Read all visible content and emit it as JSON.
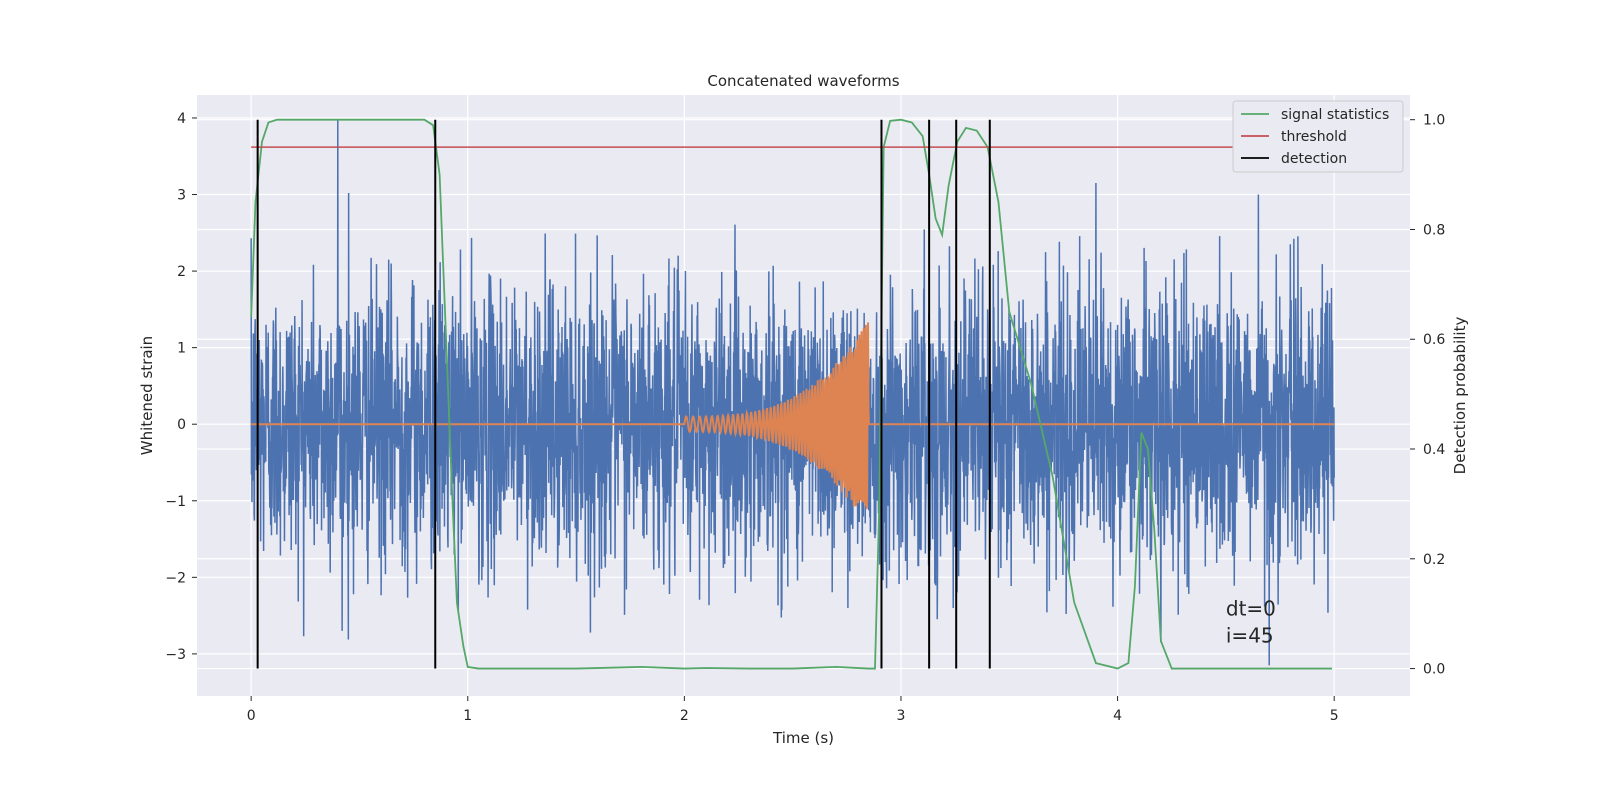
{
  "chart_data": {
    "type": "line",
    "title": "Concatenated waveforms",
    "xlabel": "Time (s)",
    "ylabel": "Whitened strain",
    "ylabel_right": "Detection probability",
    "xlim": [
      -0.25,
      5.35
    ],
    "ylim": [
      -3.55,
      4.3
    ],
    "ylim_right": [
      -0.05,
      1.045
    ],
    "x_ticks": [
      0,
      1,
      2,
      3,
      4,
      5
    ],
    "y_ticks": [
      -3,
      -2,
      -1,
      0,
      1,
      2,
      3,
      4
    ],
    "y_right_ticks": [
      0.0,
      0.2,
      0.4,
      0.6,
      0.8,
      1.0
    ],
    "x_tick_labels": [
      "0",
      "1",
      "2",
      "3",
      "4",
      "5"
    ],
    "y_tick_labels": [
      "−3",
      "−2",
      "−1",
      "0",
      "1",
      "2",
      "3",
      "4"
    ],
    "y_right_tick_labels": [
      "0.0",
      "0.2",
      "0.4",
      "0.6",
      "0.8",
      "1.0"
    ],
    "grid": true,
    "legend_position": "top-right",
    "colors": {
      "background": "#eaeaf2",
      "strain": "#4c72b0",
      "waveform": "#dd8452",
      "signal_statistics": "#55a868",
      "threshold": "#c44e52",
      "detection": "#000000"
    },
    "series": [
      {
        "name": "",
        "axis": "left",
        "description_of_values": "whitened strain noise, amplitude envelope ~ +/-2.5 with peaks",
        "x_range": [
          0,
          5
        ],
        "sample_points": [
          {
            "x": 0.4,
            "y": 3.98
          },
          {
            "x": 0.42,
            "y": -2.7
          },
          {
            "x": 0.45,
            "y": 3.02
          },
          {
            "x": 3.9,
            "y": 3.15
          },
          {
            "x": 4.65,
            "y": 3.0
          },
          {
            "x": 4.7,
            "y": -3.15
          },
          {
            "x": 4.2,
            "y": -2.85
          }
        ]
      },
      {
        "name": "",
        "axis": "left",
        "description_of_values": "injected chirp waveform from t=2.0 to t=2.85, amplitude growing to ~1.35",
        "chirp": {
          "t_start": 2.0,
          "t_end": 2.85,
          "amp_start": 0.1,
          "amp_end": 1.35
        }
      },
      {
        "name": "signal statistics",
        "axis": "right",
        "x": [
          0,
          0.02,
          0.05,
          0.08,
          0.12,
          0.2,
          0.5,
          0.8,
          0.84,
          0.87,
          0.9,
          0.93,
          0.95,
          0.98,
          1.0,
          1.05,
          1.2,
          1.5,
          1.8,
          2.0,
          2.1,
          2.3,
          2.5,
          2.7,
          2.85,
          2.88,
          2.9,
          2.92,
          2.95,
          3.0,
          3.05,
          3.1,
          3.13,
          3.16,
          3.19,
          3.22,
          3.26,
          3.3,
          3.35,
          3.4,
          3.45,
          3.5,
          3.6,
          3.7,
          3.8,
          3.9,
          4.0,
          4.05,
          4.08,
          4.11,
          4.14,
          4.17,
          4.2,
          4.25,
          4.5,
          4.99
        ],
        "values": [
          0.64,
          0.85,
          0.96,
          0.995,
          1.0,
          1.0,
          1.0,
          1.0,
          0.99,
          0.9,
          0.6,
          0.3,
          0.12,
          0.04,
          0.003,
          0.0,
          0.0,
          0.0,
          0.003,
          0.0,
          0.001,
          0.0,
          0.0,
          0.003,
          0.0,
          0.0,
          0.3,
          0.95,
          0.998,
          1.0,
          0.995,
          0.97,
          0.9,
          0.82,
          0.79,
          0.88,
          0.96,
          0.985,
          0.98,
          0.95,
          0.85,
          0.65,
          0.52,
          0.35,
          0.12,
          0.01,
          0.0,
          0.01,
          0.15,
          0.43,
          0.4,
          0.25,
          0.05,
          0.0,
          0.0,
          0.0
        ]
      },
      {
        "name": "threshold",
        "axis": "right",
        "x": [
          0,
          5
        ],
        "values": [
          0.95,
          0.95
        ]
      },
      {
        "name": "detection",
        "axis": "right",
        "type": "vlines",
        "x": [
          0.03,
          0.85,
          2.91,
          3.13,
          3.255,
          3.41
        ],
        "range": [
          0.0,
          1.0
        ]
      }
    ],
    "annotations": [
      {
        "text": "dt=0",
        "x": 4.5,
        "y": -2.5
      },
      {
        "text": "i=45",
        "x": 4.5,
        "y": -2.85
      }
    ]
  }
}
